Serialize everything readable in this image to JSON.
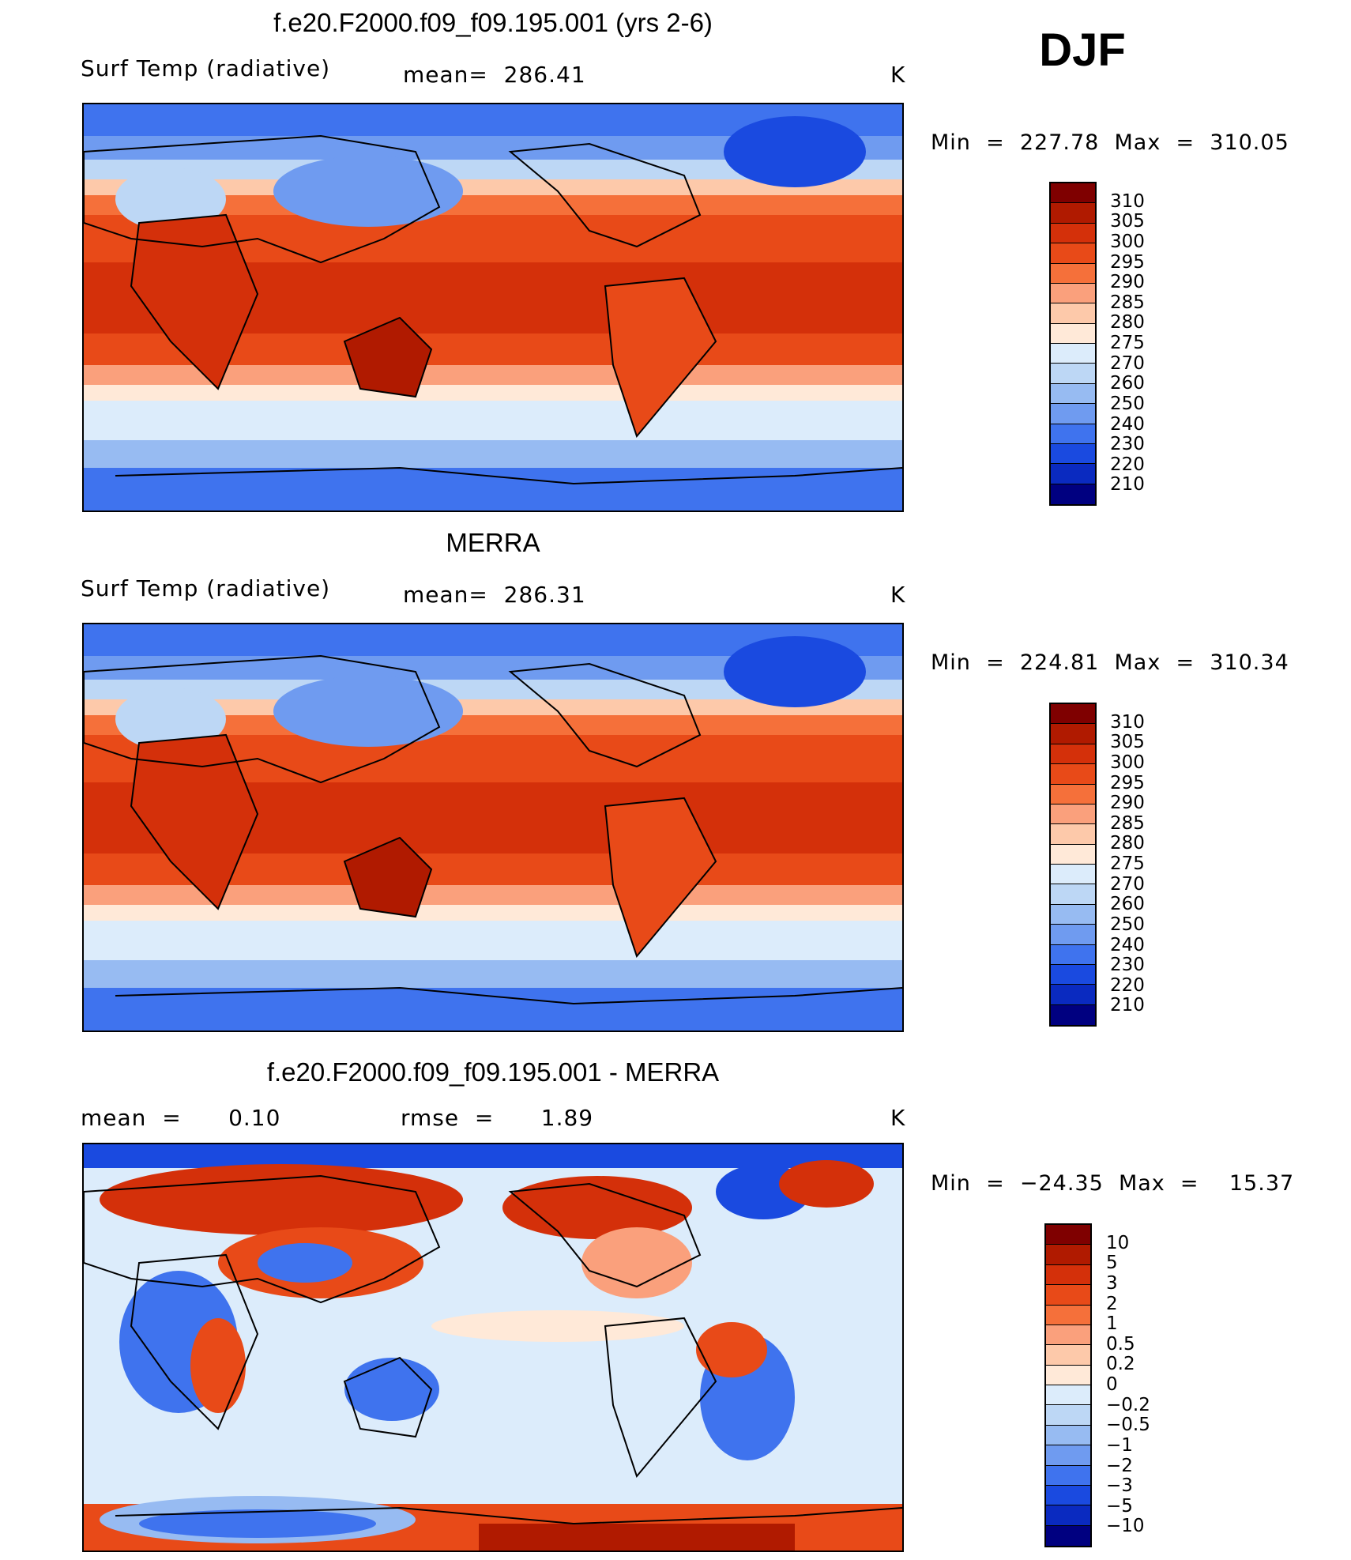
{
  "season": "DJF",
  "unit_label": "K",
  "panels": [
    {
      "title": "f.e20.F2000.f09_f09.195.001 (yrs 2-6)",
      "left_label": "Surf Temp (radiative)",
      "mid_label": "mean=  286.41",
      "right_label": "K",
      "minmax": "Min  =  227.78  Max  =  310.05",
      "type": "field"
    },
    {
      "title": "MERRA",
      "left_label": "Surf Temp (radiative)",
      "mid_label": "mean=  286.31",
      "right_label": "K",
      "minmax": "Min  =  224.81  Max  =  310.34",
      "type": "field"
    },
    {
      "title": "f.e20.F2000.f09_f09.195.001 - MERRA",
      "left_label": "mean  =      0.10",
      "mid_label": "rmse  =      1.89",
      "right_label": "K",
      "minmax": "Min  =  −24.35  Max  =    15.37",
      "type": "diff"
    }
  ],
  "colorbars": {
    "field": {
      "labels": [
        "310",
        "305",
        "300",
        "295",
        "290",
        "285",
        "280",
        "275",
        "270",
        "260",
        "250",
        "240",
        "230",
        "220",
        "210"
      ],
      "colors": [
        "#7f0000",
        "#b01a00",
        "#d4300a",
        "#e84a18",
        "#f5703a",
        "#faa07c",
        "#fdc9aa",
        "#ffe9d8",
        "#dcecfb",
        "#bdd7f5",
        "#97bbf2",
        "#6f9bf0",
        "#3f73ee",
        "#1a4ae0",
        "#0a2ac0",
        "#000080"
      ]
    },
    "diff": {
      "labels": [
        "10",
        "5",
        "3",
        "2",
        "1",
        "0.5",
        "0.2",
        "0",
        "−0.2",
        "−0.5",
        "−1",
        "−2",
        "−3",
        "−5",
        "−10"
      ],
      "colors": [
        "#7f0000",
        "#b01a00",
        "#d4300a",
        "#e84a18",
        "#f5703a",
        "#faa07c",
        "#fdc9aa",
        "#ffe9d8",
        "#dcecfb",
        "#bdd7f5",
        "#97bbf2",
        "#6f9bf0",
        "#3f73ee",
        "#1a4ae0",
        "#0a2ac0",
        "#000080"
      ]
    }
  }
}
